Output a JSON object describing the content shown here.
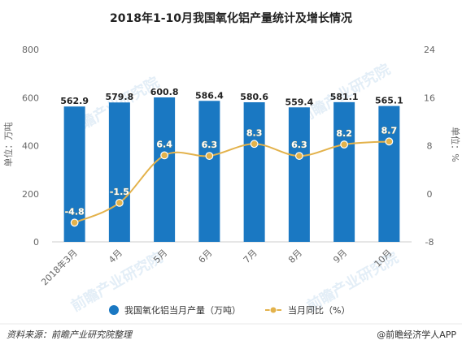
{
  "chart_data": {
    "type": "bar+line",
    "title": "2018年1-10月我国氧化铝产量统计及增长情况",
    "categories": [
      "2018年3月",
      "4月",
      "5月",
      "6月",
      "7月",
      "8月",
      "9月",
      "10月"
    ],
    "series": [
      {
        "name": "我国氧化铝当月产量（万吨）",
        "type": "bar",
        "axis": "left",
        "color": "#1a78c2",
        "values": [
          562.9,
          579.8,
          600.8,
          586.4,
          580.6,
          559.4,
          581.1,
          565.1
        ],
        "labels": [
          "562.9",
          "579.8",
          "600.8",
          "586.4",
          "580.6",
          "559.4",
          "581.1",
          "565.1"
        ]
      },
      {
        "name": "当月同比（%）",
        "type": "line",
        "axis": "right",
        "color": "#e3b24b",
        "values": [
          -4.8,
          -1.5,
          6.4,
          6.3,
          8.3,
          6.3,
          8.2,
          8.7
        ],
        "labels": [
          "-4.8",
          "-1.5",
          "6.4",
          "6.3",
          "8.3",
          "6.3",
          "8.2",
          "8.7"
        ]
      }
    ],
    "ylabel": "单位：万吨",
    "ylabel_right": "单位：%",
    "ylim": [
      0,
      800
    ],
    "ylim_right": [
      -8,
      24
    ],
    "yticks": [
      "0",
      "200",
      "400",
      "600",
      "800"
    ],
    "yticks_right": [
      "-8",
      "0",
      "8",
      "16",
      "24"
    ],
    "grid": false,
    "legend_position": "bottom"
  },
  "footer": {
    "source": "资料来源：前瞻产业研究院整理",
    "brand": "@前瞻经济学人APP"
  }
}
